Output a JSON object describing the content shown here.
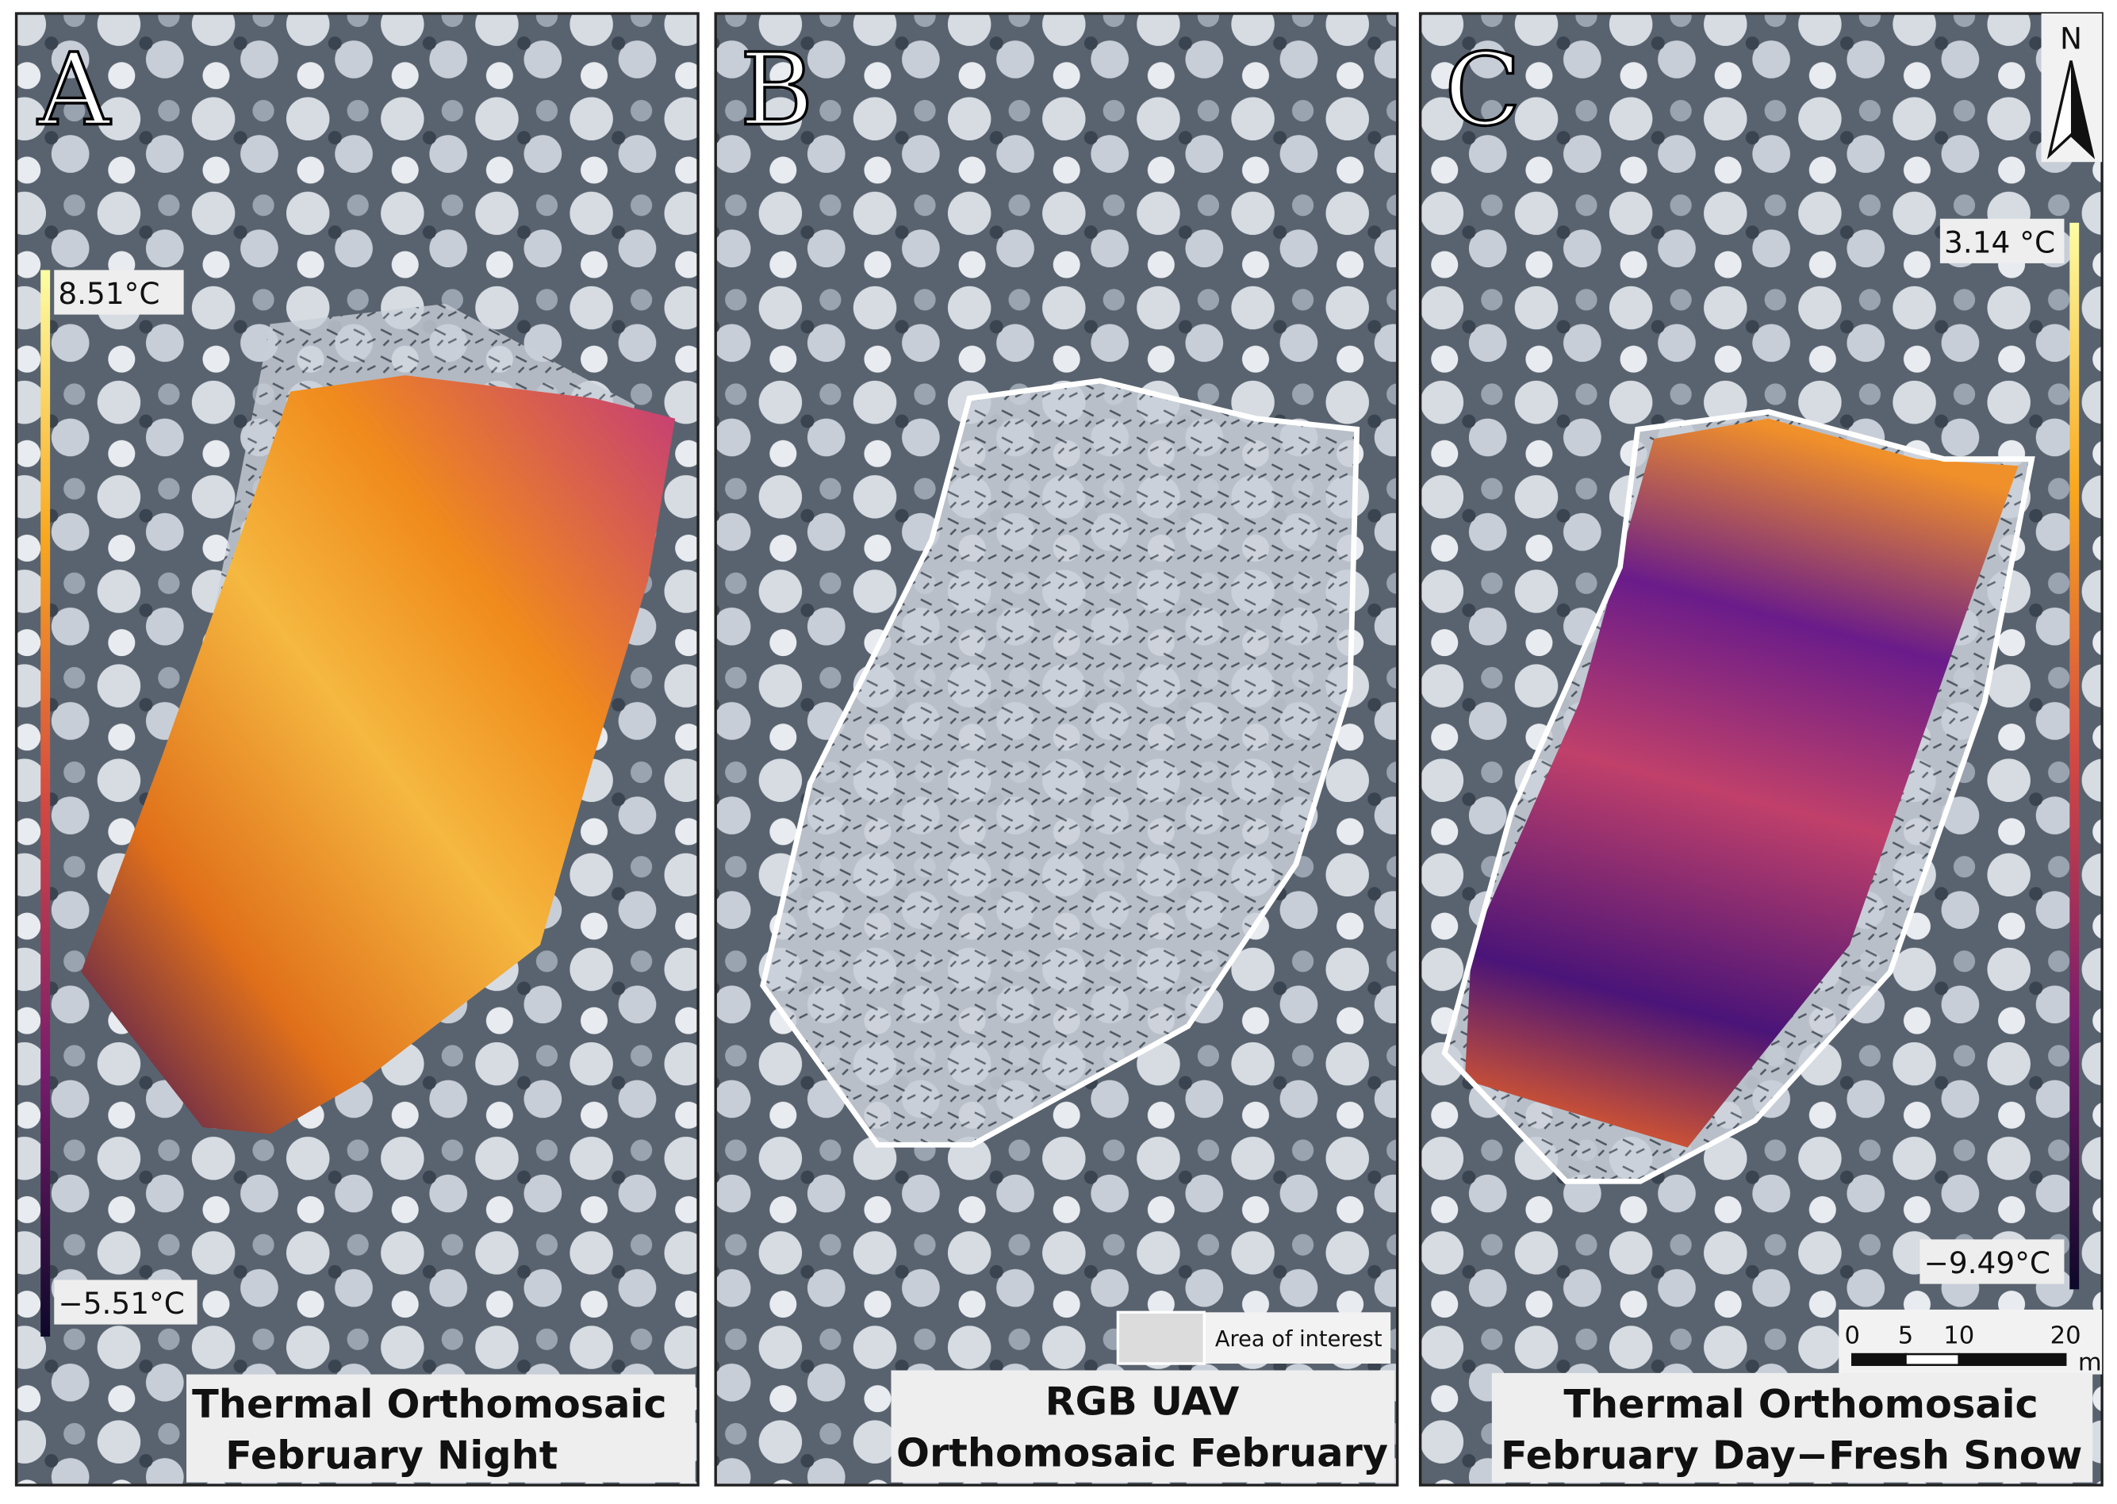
{
  "panels": [
    {
      "letter": "A",
      "title_lines": [
        "Thermal Orthomosaic",
        "February Night"
      ],
      "colorbar": {
        "max_label": "8.51°C",
        "min_label": "−5.51°C"
      }
    },
    {
      "letter": "B",
      "title_lines": [
        "RGB UAV",
        "Orthomosaic February"
      ],
      "legend_label": "Area of interest"
    },
    {
      "letter": "C",
      "title_lines": [
        "Thermal Orthomosaic",
        "February Day−Fresh Snow"
      ],
      "colorbar": {
        "max_label": "3.14 °C",
        "min_label": "−9.49°C"
      }
    }
  ],
  "north_arrow": "N",
  "scale_bar": {
    "ticks": [
      0,
      5,
      10,
      20
    ],
    "unit": "m"
  }
}
